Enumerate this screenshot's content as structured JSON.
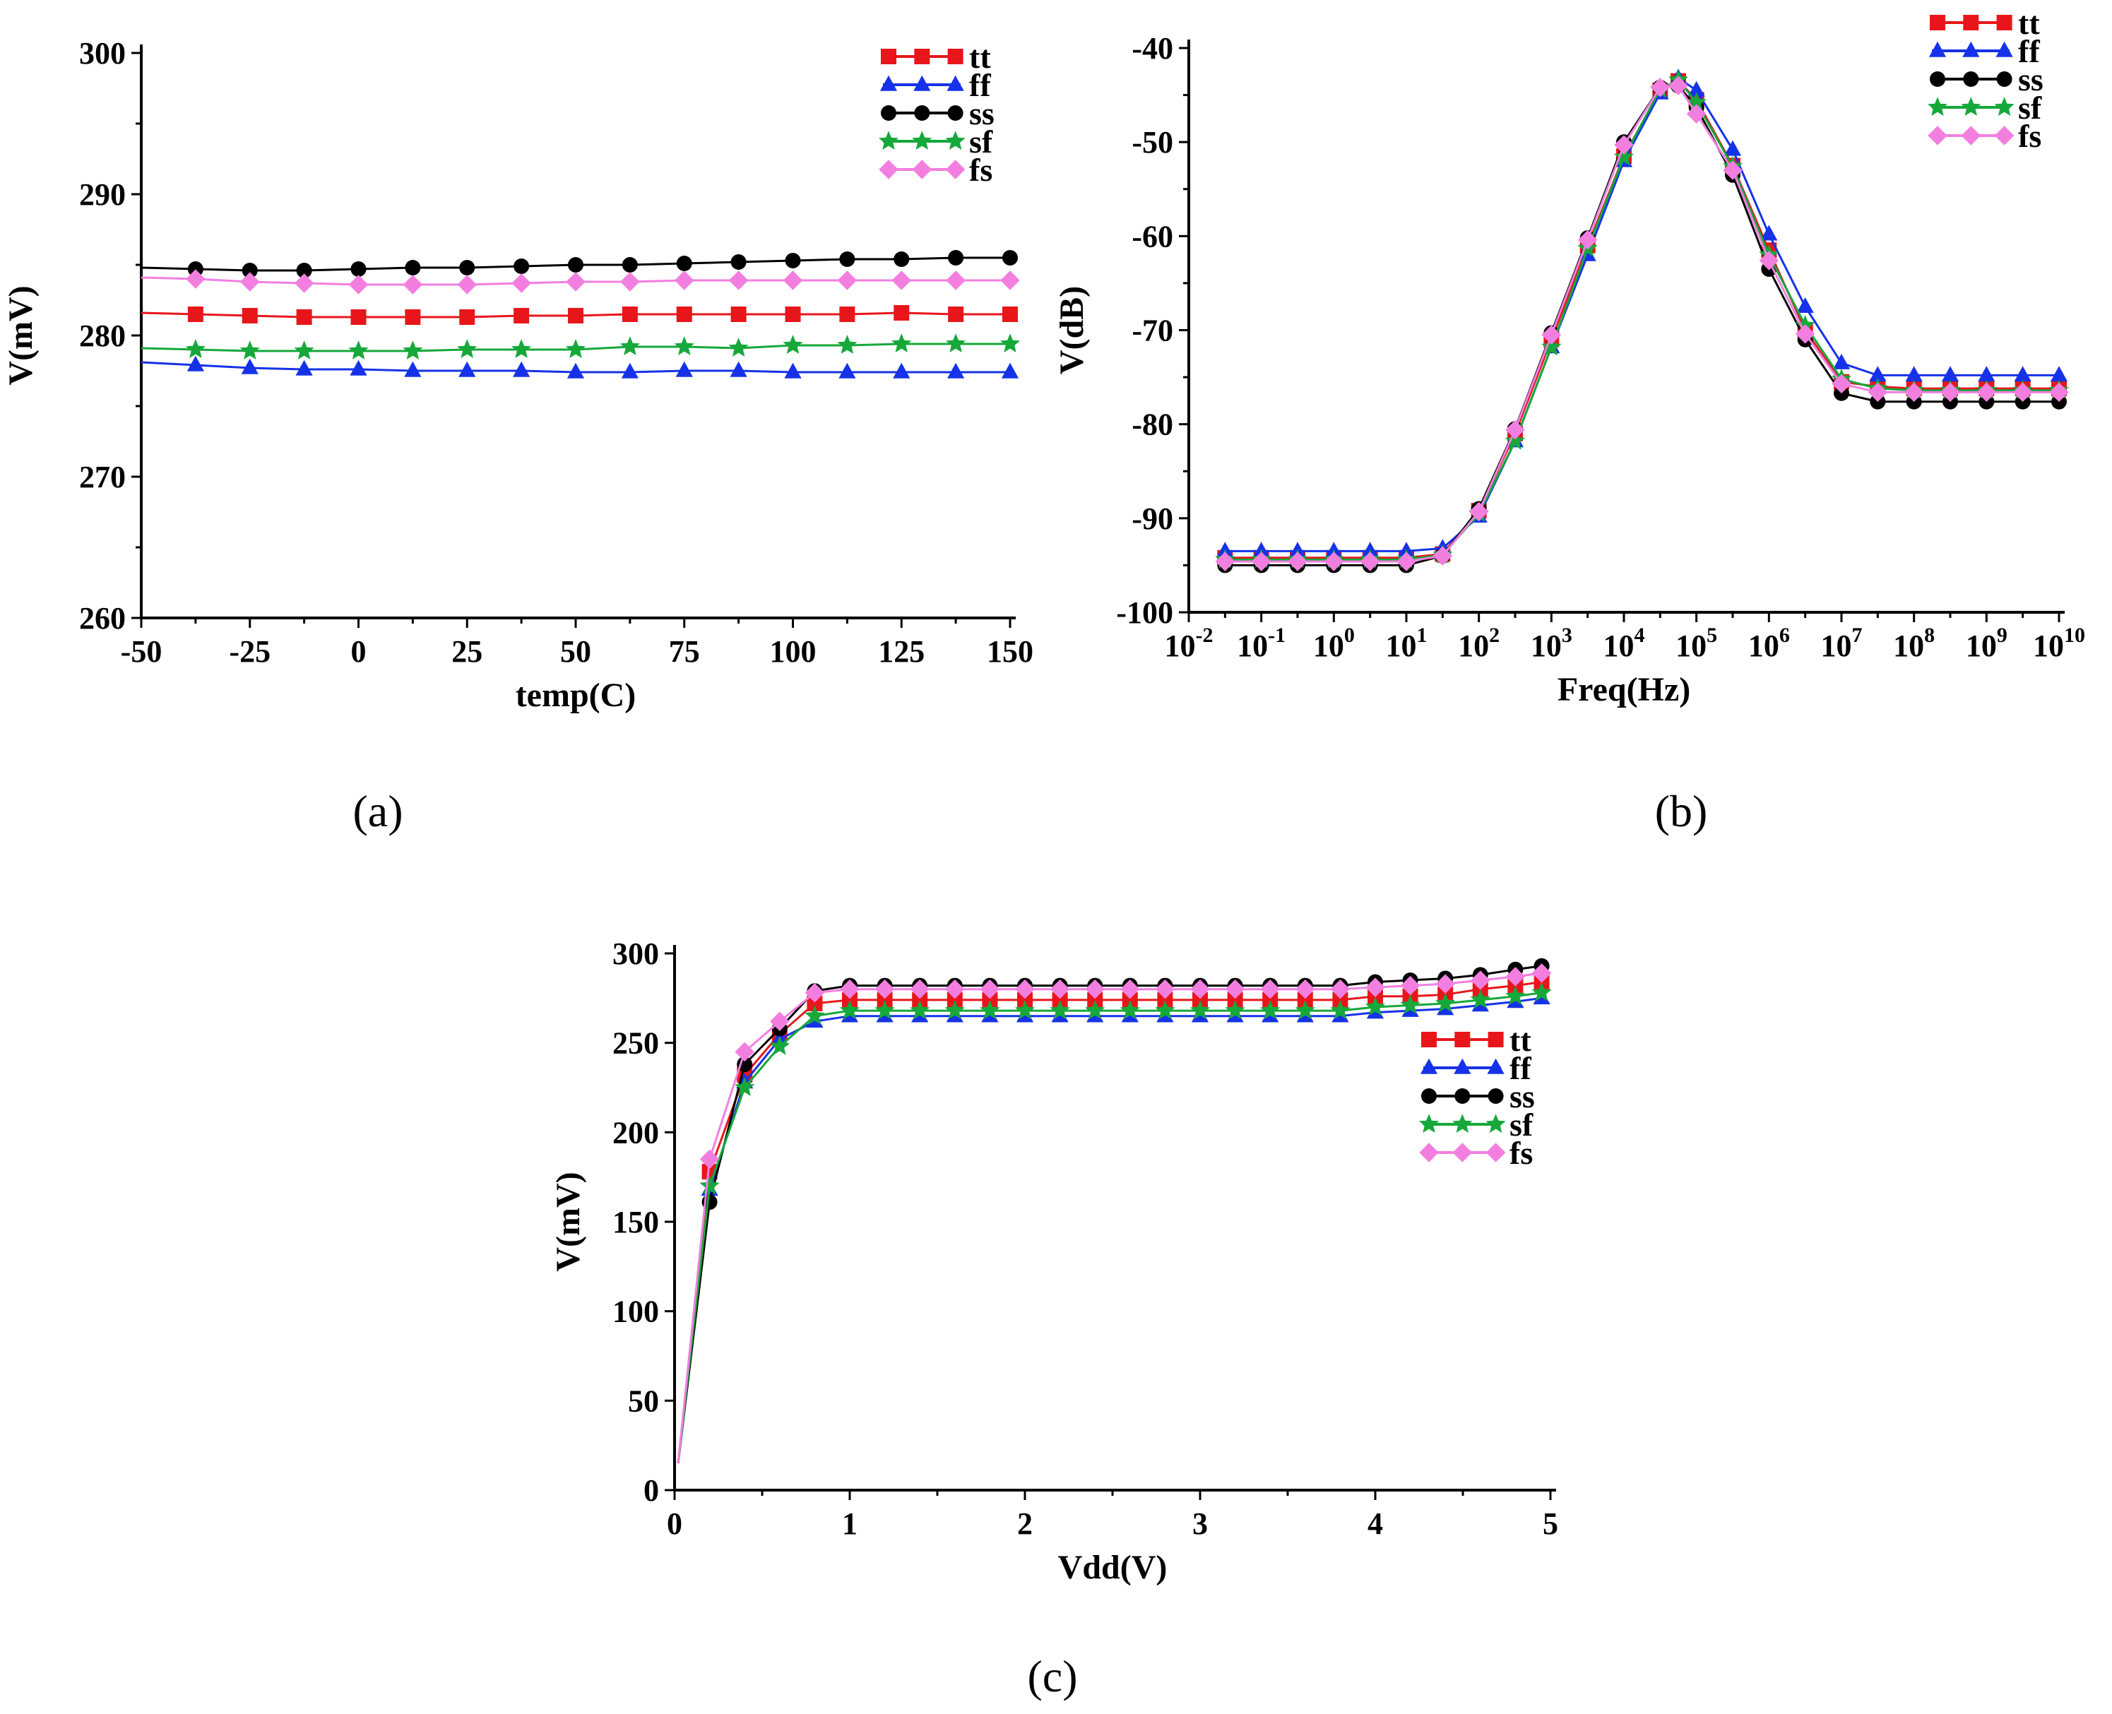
{
  "figure": {
    "panel_labels": [
      "(a)",
      "(b)",
      "(c)"
    ]
  },
  "series_styles": [
    {
      "name": "tt",
      "color": "#e8161b",
      "marker": "square"
    },
    {
      "name": "ff",
      "color": "#1632e8",
      "marker": "triangle"
    },
    {
      "name": "ss",
      "color": "#000000",
      "marker": "circle"
    },
    {
      "name": "sf",
      "color": "#16a83a",
      "marker": "star"
    },
    {
      "name": "fs",
      "color": "#f27fe0",
      "marker": "diamond"
    }
  ],
  "chart_data": [
    {
      "type": "line",
      "panel": "(a)",
      "title": "",
      "xlabel": "temp(C)",
      "ylabel": "V(mV)",
      "xlim": [
        -50,
        150
      ],
      "ylim": [
        260,
        300
      ],
      "xticks": [
        "-50",
        "-25",
        "0",
        "25",
        "50",
        "75",
        "100",
        "125",
        "150"
      ],
      "yticks": [
        "260",
        "270",
        "280",
        "290",
        "300"
      ],
      "legend": "top-right",
      "grid": false,
      "x": [
        -50,
        -37.5,
        -25,
        -12.5,
        0,
        12.5,
        25,
        37.5,
        50,
        62.5,
        75,
        87.5,
        100,
        112.5,
        125,
        137.5,
        150
      ],
      "series": [
        {
          "name": "tt",
          "values": [
            281.6,
            281.5,
            281.4,
            281.3,
            281.3,
            281.3,
            281.3,
            281.4,
            281.4,
            281.5,
            281.5,
            281.5,
            281.5,
            281.5,
            281.6,
            281.5,
            281.5
          ]
        },
        {
          "name": "ff",
          "values": [
            278.1,
            277.9,
            277.7,
            277.6,
            277.6,
            277.5,
            277.5,
            277.5,
            277.4,
            277.4,
            277.5,
            277.5,
            277.4,
            277.4,
            277.4,
            277.4,
            277.4
          ]
        },
        {
          "name": "ss",
          "values": [
            284.8,
            284.7,
            284.6,
            284.6,
            284.7,
            284.8,
            284.8,
            284.9,
            285.0,
            285.0,
            285.1,
            285.2,
            285.3,
            285.4,
            285.4,
            285.5,
            285.5
          ]
        },
        {
          "name": "sf",
          "values": [
            279.1,
            279.0,
            278.9,
            278.9,
            278.9,
            278.9,
            279.0,
            279.0,
            279.0,
            279.2,
            279.2,
            279.1,
            279.3,
            279.3,
            279.4,
            279.4,
            279.4
          ]
        },
        {
          "name": "fs",
          "values": [
            284.1,
            284.0,
            283.8,
            283.7,
            283.6,
            283.6,
            283.6,
            283.7,
            283.8,
            283.8,
            283.9,
            283.9,
            283.9,
            283.9,
            283.9,
            283.9,
            283.9
          ]
        }
      ]
    },
    {
      "type": "line",
      "panel": "(b)",
      "title": "",
      "xlabel": "Freq(Hz)",
      "ylabel": "V(dB)",
      "xscale": "log10",
      "xlim": [
        -2,
        10
      ],
      "ylim": [
        -100,
        -40
      ],
      "xticks": [
        "10^-2",
        "10^-1",
        "10^0",
        "10^1",
        "10^2",
        "10^3",
        "10^4",
        "10^5",
        "10^6",
        "10^7",
        "10^8",
        "10^9",
        "10^10"
      ],
      "yticks": [
        "-100",
        "-90",
        "-80",
        "-70",
        "-60",
        "-50",
        "-40"
      ],
      "legend": "top-right",
      "grid": false,
      "x_log10": [
        -1.5,
        -1,
        -0.5,
        0,
        0.5,
        1,
        1.5,
        2,
        2.5,
        3,
        3.5,
        4,
        4.5,
        4.75,
        5,
        5.5,
        6,
        6.5,
        7,
        7.5,
        8,
        8.5,
        9,
        9.5,
        10
      ],
      "series": [
        {
          "name": "tt",
          "values": [
            -94.2,
            -94.2,
            -94.2,
            -94.2,
            -94.2,
            -94.2,
            -93.8,
            -89.2,
            -81.0,
            -71.0,
            -61.0,
            -51.5,
            -44.5,
            -43.5,
            -45.5,
            -52.5,
            -61.5,
            -70.0,
            -75.5,
            -76.0,
            -76.2,
            -76.2,
            -76.2,
            -76.2,
            -76.2
          ]
        },
        {
          "name": "ff",
          "values": [
            -93.5,
            -93.5,
            -93.5,
            -93.5,
            -93.5,
            -93.5,
            -93.2,
            -89.8,
            -81.8,
            -71.8,
            -62.0,
            -52.0,
            -44.8,
            -43.2,
            -44.5,
            -50.8,
            -59.8,
            -67.5,
            -73.5,
            -74.8,
            -74.8,
            -74.8,
            -74.8,
            -74.8,
            -74.8
          ]
        },
        {
          "name": "ss",
          "values": [
            -95.0,
            -95.0,
            -95.0,
            -95.0,
            -95.0,
            -95.0,
            -94.0,
            -89.0,
            -80.5,
            -70.3,
            -60.2,
            -50.0,
            -44.2,
            -44.0,
            -46.3,
            -53.5,
            -63.5,
            -71.0,
            -76.7,
            -77.6,
            -77.6,
            -77.6,
            -77.6,
            -77.6,
            -77.6
          ]
        },
        {
          "name": "sf",
          "values": [
            -94.4,
            -94.4,
            -94.4,
            -94.4,
            -94.4,
            -94.4,
            -93.9,
            -89.5,
            -81.8,
            -71.8,
            -61.3,
            -51.6,
            -44.4,
            -43.4,
            -45.8,
            -52.6,
            -62.0,
            -69.5,
            -75.2,
            -76.2,
            -76.4,
            -76.4,
            -76.4,
            -76.4,
            -76.4
          ]
        },
        {
          "name": "fs",
          "values": [
            -94.6,
            -94.6,
            -94.6,
            -94.6,
            -94.6,
            -94.6,
            -94.0,
            -89.3,
            -80.6,
            -70.5,
            -60.4,
            -50.3,
            -44.2,
            -44.0,
            -47.0,
            -53.0,
            -62.6,
            -70.4,
            -75.7,
            -76.6,
            -76.6,
            -76.6,
            -76.6,
            -76.6,
            -76.6
          ]
        }
      ]
    },
    {
      "type": "line",
      "panel": "(c)",
      "title": "",
      "xlabel": "Vdd(V)",
      "ylabel": "V(mV)",
      "xlim": [
        0,
        5
      ],
      "ylim": [
        0,
        300
      ],
      "xticks": [
        "0",
        "1",
        "2",
        "3",
        "4",
        "5"
      ],
      "yticks": [
        "0",
        "50",
        "100",
        "150",
        "200",
        "250",
        "300"
      ],
      "legend": "right",
      "grid": false,
      "x": [
        0.02,
        0.2,
        0.4,
        0.6,
        0.8,
        1.0,
        1.2,
        1.4,
        1.6,
        1.8,
        2.0,
        2.2,
        2.4,
        2.6,
        2.8,
        3.0,
        3.2,
        3.4,
        3.6,
        3.8,
        4.0,
        4.2,
        4.4,
        4.6,
        4.8,
        4.95
      ],
      "series": [
        {
          "name": "tt",
          "values": [
            15,
            178,
            232,
            255,
            272,
            274,
            274,
            274,
            274,
            274,
            274,
            274,
            274,
            274,
            274,
            274,
            274,
            274,
            274,
            274,
            276,
            276,
            277,
            280,
            282,
            284
          ]
        },
        {
          "name": "ff",
          "values": [
            15,
            168,
            228,
            252,
            262,
            265,
            265,
            265,
            265,
            265,
            265,
            265,
            265,
            265,
            265,
            265,
            265,
            265,
            265,
            265,
            267,
            268,
            269,
            271,
            273,
            275
          ]
        },
        {
          "name": "ss",
          "values": [
            15,
            161,
            238,
            258,
            279,
            282,
            282,
            282,
            282,
            282,
            282,
            282,
            282,
            282,
            282,
            282,
            282,
            282,
            282,
            282,
            284,
            285,
            286,
            288,
            291,
            293
          ]
        },
        {
          "name": "sf",
          "values": [
            15,
            170,
            225,
            248,
            265,
            268,
            268,
            268,
            268,
            268,
            268,
            268,
            268,
            268,
            268,
            268,
            268,
            268,
            268,
            268,
            270,
            271,
            272,
            274,
            276,
            278
          ]
        },
        {
          "name": "fs",
          "values": [
            15,
            185,
            245,
            262,
            278,
            280,
            280,
            280,
            280,
            280,
            280,
            280,
            280,
            280,
            280,
            280,
            280,
            280,
            280,
            280,
            281,
            282,
            283,
            285,
            287,
            289
          ]
        }
      ]
    }
  ]
}
